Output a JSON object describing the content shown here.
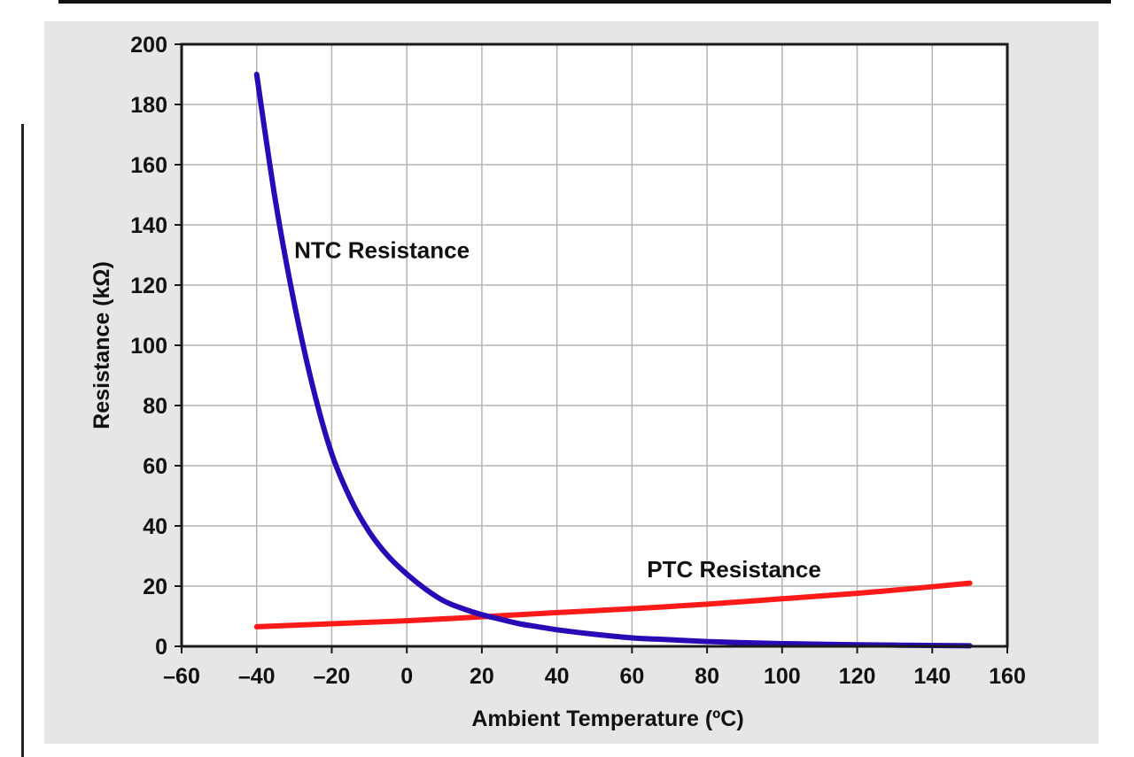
{
  "chart_data": {
    "type": "line",
    "title": "",
    "xlabel": "Ambient Temperature (ºC)",
    "ylabel": "Resistance (kΩ)",
    "xlim": [
      -60,
      160
    ],
    "ylim": [
      0,
      200
    ],
    "x_ticks": [
      -60,
      -40,
      -20,
      0,
      20,
      40,
      60,
      80,
      100,
      120,
      140,
      160
    ],
    "x_tick_labels": [
      "–60",
      "–40",
      "–20",
      "0",
      "20",
      "40",
      "60",
      "80",
      "100",
      "120",
      "140",
      "160"
    ],
    "y_ticks": [
      0,
      20,
      40,
      60,
      80,
      100,
      120,
      140,
      160,
      180,
      200
    ],
    "y_tick_labels": [
      "0",
      "20",
      "40",
      "60",
      "80",
      "100",
      "120",
      "140",
      "160",
      "180",
      "200"
    ],
    "grid": true,
    "series": [
      {
        "name": "NTC Resistance",
        "color": "#2a0ab4",
        "x": [
          -40,
          -35,
          -30,
          -25,
          -20,
          -15,
          -10,
          -5,
          0,
          5,
          10,
          15,
          20,
          25,
          30,
          35,
          40,
          50,
          60,
          70,
          80,
          90,
          100,
          110,
          120,
          130,
          140,
          150
        ],
        "y": [
          190,
          148,
          114,
          86,
          64,
          49,
          38,
          30,
          24,
          19,
          15,
          12.5,
          10.5,
          9,
          7.5,
          6.5,
          5.5,
          4,
          2.8,
          2.2,
          1.6,
          1.2,
          0.9,
          0.7,
          0.5,
          0.4,
          0.3,
          0.2
        ]
      },
      {
        "name": "PTC Resistance",
        "color": "#ff1a1a",
        "x": [
          -40,
          -20,
          0,
          20,
          40,
          60,
          80,
          100,
          120,
          140,
          150
        ],
        "y": [
          6.5,
          7.5,
          8.5,
          9.8,
          11.2,
          12.5,
          14,
          15.8,
          17.6,
          19.8,
          21
        ]
      }
    ],
    "annotations": [
      {
        "text": "NTC Resistance",
        "x": -30,
        "y": 129
      },
      {
        "text": "PTC Resistance",
        "x": 64,
        "y": 23
      }
    ]
  }
}
